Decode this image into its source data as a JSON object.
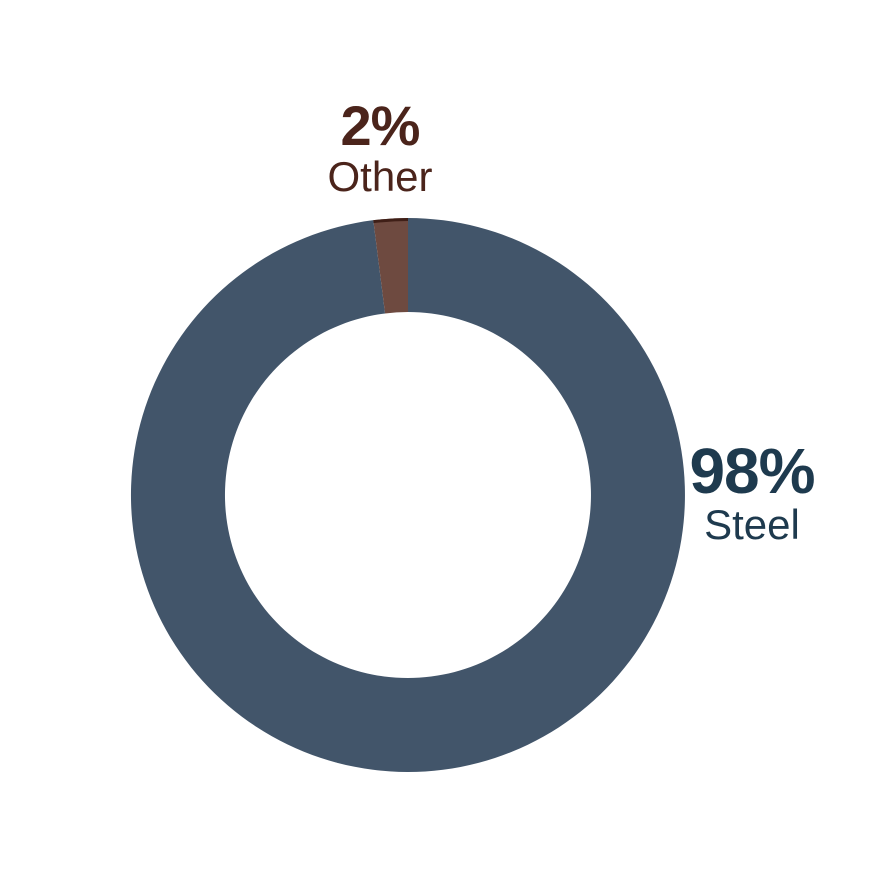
{
  "page": {
    "background": "#FFFFFF"
  },
  "chart_data": {
    "type": "pie",
    "subtype": "donut",
    "title": "",
    "categories": [
      "Steel",
      "Other"
    ],
    "values": [
      98,
      2
    ],
    "unit": "%",
    "colors": [
      "#42556A",
      "#6E4A40"
    ],
    "label_colors": [
      "#1E3A4E",
      "#4B241B"
    ],
    "other_slice_outer_edge_color": "#3F1F17",
    "start_angle_deg": 0,
    "direction": "clockwise",
    "inner_radius_ratio": 0.66,
    "legend": "none",
    "gridlines": false,
    "data_labels": [
      {
        "text": "2%",
        "category": "Other",
        "position": "outside-top-left"
      },
      {
        "text": "98%",
        "category": "Steel",
        "position": "outside-right"
      }
    ]
  }
}
